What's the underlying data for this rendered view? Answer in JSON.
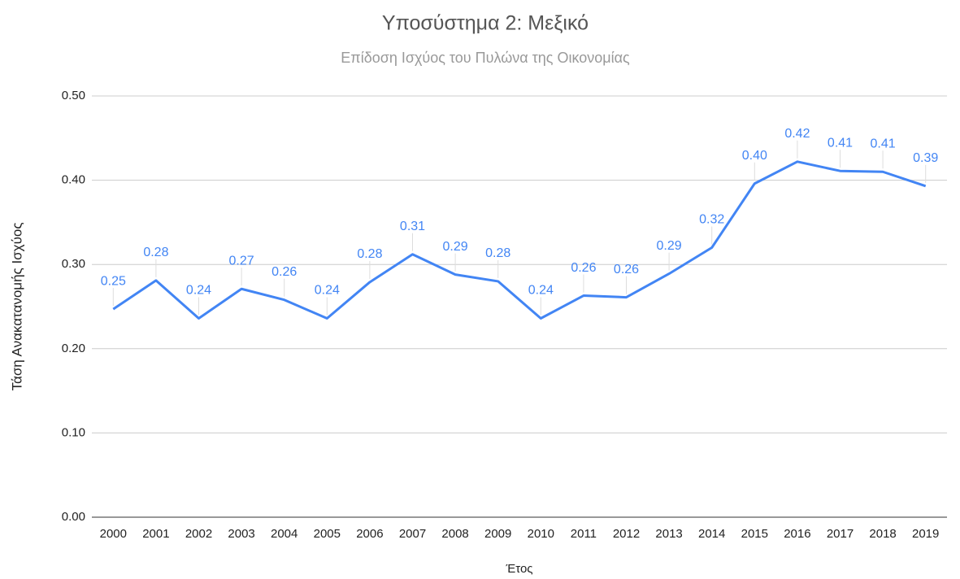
{
  "chart_data": {
    "type": "line",
    "title": "Υποσύστημα 2: Μεξικό",
    "subtitle": "Επίδοση Ισχύος του Πυλώνα της Οικονομίας",
    "x_label": "Έτος",
    "y_label": "Τάση Ανακατανομής Ισχύος",
    "categories": [
      "2000",
      "2001",
      "2002",
      "2003",
      "2004",
      "2005",
      "2006",
      "2007",
      "2008",
      "2009",
      "2010",
      "2011",
      "2012",
      "2013",
      "2014",
      "2015",
      "2016",
      "2017",
      "2018",
      "2019"
    ],
    "series": [
      {
        "name": "Τάση Ανακατανομής Ισχύος",
        "color": "#4285f4",
        "values": [
          0.247,
          0.281,
          0.236,
          0.271,
          0.258,
          0.236,
          0.279,
          0.312,
          0.288,
          0.28,
          0.236,
          0.263,
          0.261,
          0.289,
          0.32,
          0.396,
          0.422,
          0.411,
          0.41,
          0.393
        ],
        "value_labels": [
          "0.25",
          "0.28",
          "0.24",
          "0.27",
          "0.26",
          "0.24",
          "0.28",
          "0.31",
          "0.29",
          "0.28",
          "0.24",
          "0.26",
          "0.26",
          "0.29",
          "0.32",
          "0.40",
          "0.42",
          "0.41",
          "0.41",
          "0.39"
        ]
      }
    ],
    "ylim": [
      0,
      0.5
    ],
    "yticks": [
      {
        "value": 0,
        "label": "0.00"
      },
      {
        "value": 0.1,
        "label": "0.10"
      },
      {
        "value": 0.2,
        "label": "0.20"
      },
      {
        "value": 0.3,
        "label": "0.30"
      },
      {
        "value": 0.4,
        "label": "0.40"
      },
      {
        "value": 0.5,
        "label": "0.50"
      }
    ],
    "grid": true
  }
}
